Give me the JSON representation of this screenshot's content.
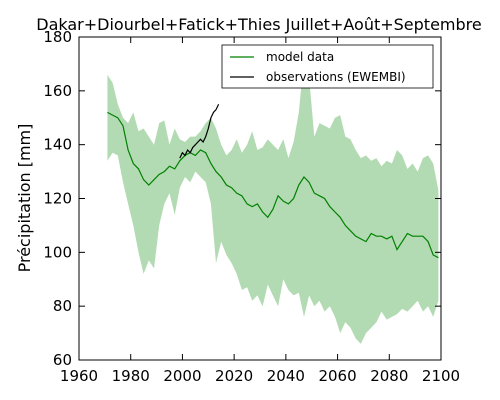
{
  "chart_data": {
    "type": "line",
    "title": "Dakar+Diourbel+Fatick+Thies Juillet+Août+Septembre",
    "xlabel": "",
    "ylabel": "Précipitation [mm]",
    "xlim": [
      1960,
      2100
    ],
    "ylim": [
      60,
      180
    ],
    "xticks": [
      1960,
      1980,
      2000,
      2020,
      2040,
      2060,
      2080,
      2100
    ],
    "yticks": [
      60,
      80,
      100,
      120,
      140,
      160,
      180
    ],
    "grid": false,
    "legend_position": "top-right",
    "series": [
      {
        "name": "model data",
        "color": "#008000",
        "x": [
          1971,
          1973,
          1975,
          1977,
          1979,
          1981,
          1983,
          1985,
          1987,
          1989,
          1991,
          1993,
          1995,
          1997,
          1999,
          2001,
          2003,
          2005,
          2007,
          2009,
          2011,
          2013,
          2015,
          2017,
          2019,
          2021,
          2023,
          2025,
          2027,
          2029,
          2031,
          2033,
          2035,
          2037,
          2039,
          2041,
          2043,
          2045,
          2047,
          2049,
          2051,
          2053,
          2055,
          2057,
          2059,
          2061,
          2063,
          2065,
          2067,
          2069,
          2071,
          2073,
          2075,
          2077,
          2079,
          2081,
          2083,
          2085,
          2087,
          2089,
          2091,
          2093,
          2095,
          2097,
          2099
        ],
        "y": [
          152,
          151,
          150,
          147,
          138,
          133,
          131,
          127,
          125,
          127,
          129,
          130,
          132,
          131,
          134,
          136,
          137,
          136,
          138,
          137,
          133,
          130,
          128,
          125,
          124,
          122,
          121,
          118,
          117,
          118,
          115,
          113,
          116,
          121,
          119,
          118,
          120,
          125,
          128,
          126,
          122,
          121,
          120,
          117,
          115,
          113,
          110,
          108,
          106,
          105,
          104,
          107,
          106,
          106,
          105,
          106,
          101,
          104,
          107,
          106,
          106,
          106,
          104,
          99,
          98
        ]
      },
      {
        "name": "observations (EWEMBI)",
        "color": "#000000",
        "x": [
          1999,
          2000,
          2001,
          2002,
          2003,
          2004,
          2005,
          2006,
          2007,
          2008,
          2009,
          2010,
          2011,
          2012,
          2013,
          2014
        ],
        "y": [
          135,
          137,
          136,
          138,
          137,
          139,
          140,
          141,
          142,
          141,
          143,
          146,
          150,
          152,
          153,
          155
        ]
      }
    ],
    "band": {
      "color": "#b3dbb3",
      "x": [
        1971,
        1973,
        1975,
        1977,
        1979,
        1981,
        1983,
        1985,
        1987,
        1989,
        1991,
        1993,
        1995,
        1997,
        1999,
        2001,
        2003,
        2005,
        2007,
        2009,
        2011,
        2013,
        2015,
        2017,
        2019,
        2021,
        2023,
        2025,
        2027,
        2029,
        2031,
        2033,
        2035,
        2037,
        2039,
        2041,
        2043,
        2045,
        2047,
        2049,
        2051,
        2053,
        2055,
        2057,
        2059,
        2061,
        2063,
        2065,
        2067,
        2069,
        2071,
        2073,
        2075,
        2077,
        2079,
        2081,
        2083,
        2085,
        2087,
        2089,
        2091,
        2093,
        2095,
        2097,
        2099
      ],
      "upper": [
        166,
        163,
        155,
        150,
        148,
        152,
        145,
        146,
        143,
        140,
        148,
        149,
        140,
        146,
        142,
        141,
        143,
        143,
        145,
        148,
        150,
        146,
        140,
        136,
        138,
        142,
        137,
        140,
        145,
        138,
        139,
        142,
        140,
        138,
        142,
        135,
        141,
        152,
        172,
        165,
        143,
        148,
        147,
        146,
        150,
        151,
        143,
        142,
        138,
        135,
        136,
        134,
        135,
        132,
        134,
        133,
        138,
        136,
        131,
        133,
        130,
        135,
        136,
        133,
        123
      ],
      "lower": [
        134,
        137,
        136,
        126,
        118,
        110,
        100,
        92,
        97,
        94,
        110,
        118,
        122,
        114,
        124,
        128,
        126,
        130,
        128,
        126,
        118,
        96,
        104,
        99,
        96,
        92,
        86,
        87,
        82,
        84,
        80,
        88,
        84,
        80,
        90,
        86,
        84,
        85,
        76,
        84,
        80,
        82,
        78,
        80,
        76,
        70,
        74,
        72,
        68,
        66,
        70,
        72,
        74,
        78,
        75,
        76,
        77,
        79,
        78,
        80,
        82,
        78,
        80,
        76,
        82
      ]
    }
  }
}
